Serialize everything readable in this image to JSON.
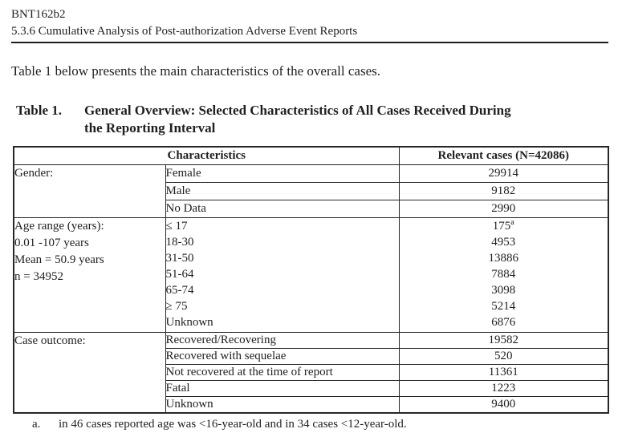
{
  "header": {
    "line1": "BNT162b2",
    "line2": "5.3.6 Cumulative Analysis of Post-authorization Adverse Event Reports"
  },
  "intro": "Table 1 below presents the main characteristics of the overall cases.",
  "caption": {
    "label": "Table 1.",
    "lines": [
      "General Overview: Selected Characteristics of All Cases Received During",
      "the Reporting Interval"
    ]
  },
  "table": {
    "header": {
      "characteristics": "Characteristics",
      "relevant_cases": "Relevant cases (N=42086)"
    },
    "gender": {
      "label": "Gender:",
      "rows": [
        {
          "category": "Female",
          "value": "29914"
        },
        {
          "category": "Male",
          "value": "9182"
        },
        {
          "category": "No Data",
          "value": "2990"
        }
      ]
    },
    "age": {
      "label_lines": [
        "Age range (years):",
        "0.01 -107 years",
        "Mean = 50.9 years",
        "n = 34952"
      ],
      "categories": [
        "≤ 17",
        "18-30",
        "31-50",
        "51-64",
        "65-74",
        "≥ 75",
        "Unknown"
      ],
      "values": [
        "175",
        "4953",
        "13886",
        "7884",
        "3098",
        "5214",
        "6876"
      ],
      "superscript_marker": "a"
    },
    "case_outcome": {
      "label": "Case outcome:",
      "rows": [
        {
          "category": "Recovered/Recovering",
          "value": "19582"
        },
        {
          "category": "Recovered with sequelae",
          "value": "520"
        },
        {
          "category": "Not recovered at the time of report",
          "value": "11361"
        },
        {
          "category": "Fatal",
          "value": "1223"
        },
        {
          "category": "Unknown",
          "value": "9400"
        }
      ]
    }
  },
  "footnote": {
    "marker": "a.",
    "text": "in 46 cases reported age was <16-year-old and in 34 cases <12-year-old."
  }
}
